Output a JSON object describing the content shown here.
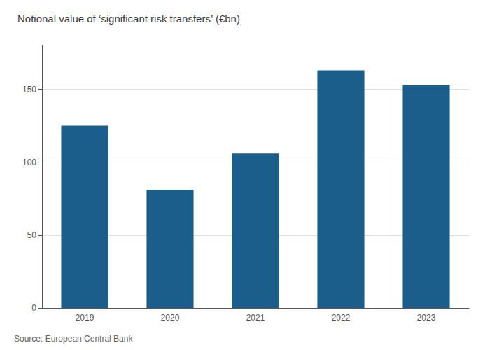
{
  "chart_data": {
    "type": "bar",
    "title": "Notional value of ‘significant risk transfers’ (€bn)",
    "annotations": [
      "Source: European Central Bank"
    ],
    "categories": [
      "2019",
      "2020",
      "2021",
      "2022",
      "2023"
    ],
    "values": [
      125,
      81,
      106,
      163,
      153
    ],
    "color": "#1B5E8C",
    "ylim": [
      0,
      180
    ],
    "yticks": [
      0,
      50,
      100,
      150
    ],
    "grid": true
  }
}
